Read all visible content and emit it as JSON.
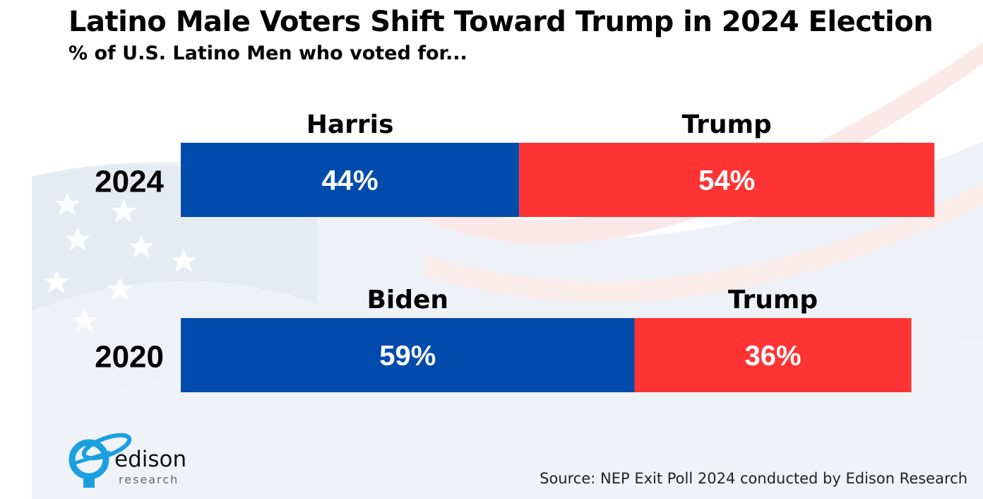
{
  "title": "Latino Male Voters Shift Toward Trump in 2024 Election",
  "subtitle": "% of U.S. Latino Men who voted for...",
  "source": "Source: NEP Exit Poll 2024 conducted by Edison Research",
  "logo": {
    "name": "edison",
    "sub": "research"
  },
  "colors": {
    "dem": "#004BAC",
    "rep": "#FF3333",
    "logo": "#1BA0DF"
  },
  "chart_data": {
    "type": "bar",
    "orientation": "horizontal-stacked",
    "title": "Latino Male Voters Shift Toward Trump in 2024 Election",
    "subtitle": "% of U.S. Latino Men who voted for...",
    "categories": [
      "2024",
      "2020"
    ],
    "rows": [
      {
        "year": "2024",
        "segments": [
          {
            "candidate": "Harris",
            "party": "dem",
            "value": 44,
            "label": "44%"
          },
          {
            "candidate": "Trump",
            "party": "rep",
            "value": 54,
            "label": "54%"
          }
        ]
      },
      {
        "year": "2020",
        "segments": [
          {
            "candidate": "Biden",
            "party": "dem",
            "value": 59,
            "label": "59%"
          },
          {
            "candidate": "Trump",
            "party": "rep",
            "value": 36,
            "label": "36%"
          }
        ]
      }
    ],
    "xlim": [
      0,
      100
    ],
    "grid": false
  }
}
